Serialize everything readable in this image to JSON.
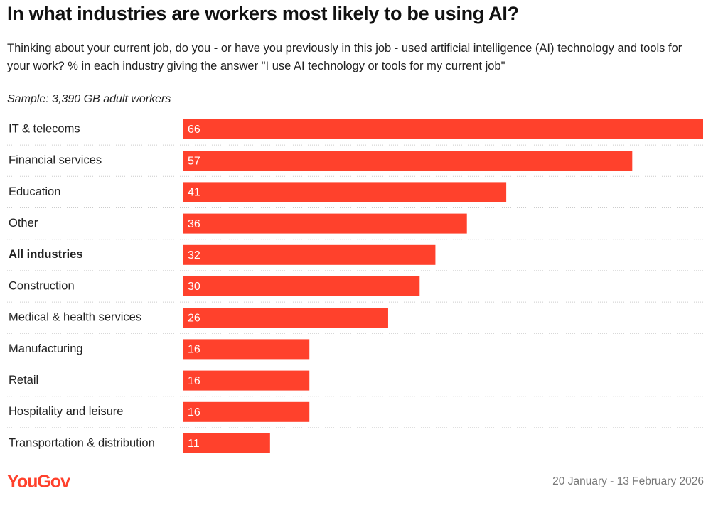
{
  "chart_data": {
    "type": "bar",
    "orientation": "horizontal",
    "title": "In what industries are workers most likely to be using AI?",
    "subtitle": [
      "Thinking about your current job, do you - or have you previously in ",
      "this",
      " job - used artificial intelligence (AI) technology and tools for your work? % in each industry giving the answer \"I use AI technology or tools for my current job\""
    ],
    "note": "Sample: 3,390 GB adult workers",
    "categories": [
      "IT & telecoms",
      "Financial services",
      "Education",
      "Other",
      "All industries",
      "Construction",
      "Medical & health services",
      "Manufacturing",
      "Retail",
      "Hospitality and leisure",
      "Transportation & distribution"
    ],
    "values": [
      66,
      57,
      41,
      36,
      32,
      30,
      26,
      16,
      16,
      16,
      11
    ],
    "color": "#ff412c",
    "bold_index": 4,
    "source": "YouGov",
    "date": "20 January - 13 February 2026"
  }
}
